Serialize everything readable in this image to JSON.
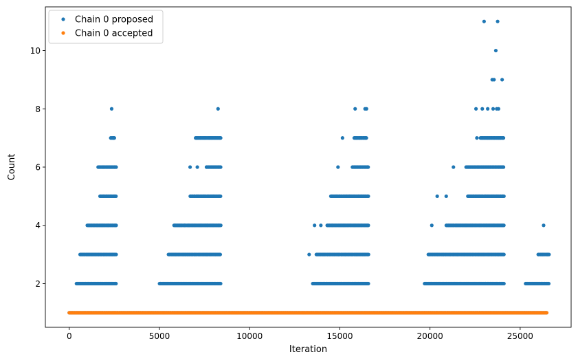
{
  "chart_data": {
    "type": "scatter",
    "title": "",
    "xlabel": "Iteration",
    "ylabel": "Count",
    "xlim": [
      -1325,
      27825
    ],
    "ylim": [
      0.5,
      11.5
    ],
    "xticks": [
      0,
      5000,
      10000,
      15000,
      20000,
      25000
    ],
    "xtick_labels": [
      "0",
      "5000",
      "10000",
      "15000",
      "20000",
      "25000"
    ],
    "yticks": [
      2,
      4,
      6,
      8,
      10
    ],
    "ytick_labels": [
      "2",
      "4",
      "6",
      "8",
      "10"
    ],
    "grid": false,
    "legend": {
      "placement": "top-left"
    },
    "series": [
      {
        "name": "Chain 0 proposed",
        "color": "#1f77b4",
        "marker": "circle",
        "baseline": {
          "y": 1,
          "x_start": 0,
          "x_end": 26500
        },
        "segments": [
          {
            "y": 2,
            "x_start": 400,
            "x_end": 2600
          },
          {
            "y": 3,
            "x_start": 600,
            "x_end": 2600
          },
          {
            "y": 4,
            "x_start": 1000,
            "x_end": 2600
          },
          {
            "y": 5,
            "x_start": 1700,
            "x_end": 2600
          },
          {
            "y": 6,
            "x_start": 1600,
            "x_end": 2600
          },
          {
            "y": 7,
            "x_start": 2300,
            "x_end": 2500
          },
          {
            "y": 2,
            "x_start": 5000,
            "x_end": 8400
          },
          {
            "y": 3,
            "x_start": 5500,
            "x_end": 8400
          },
          {
            "y": 4,
            "x_start": 5800,
            "x_end": 8400
          },
          {
            "y": 5,
            "x_start": 6700,
            "x_end": 8400
          },
          {
            "y": 6,
            "x_start": 7600,
            "x_end": 8400
          },
          {
            "y": 7,
            "x_start": 7000,
            "x_end": 8400
          },
          {
            "y": 2,
            "x_start": 13500,
            "x_end": 16600
          },
          {
            "y": 3,
            "x_start": 13700,
            "x_end": 16600
          },
          {
            "y": 4,
            "x_start": 14300,
            "x_end": 16600
          },
          {
            "y": 5,
            "x_start": 14500,
            "x_end": 16600
          },
          {
            "y": 6,
            "x_start": 15700,
            "x_end": 16600
          },
          {
            "y": 7,
            "x_start": 15800,
            "x_end": 16500
          },
          {
            "y": 2,
            "x_start": 19700,
            "x_end": 24100
          },
          {
            "y": 3,
            "x_start": 19900,
            "x_end": 24100
          },
          {
            "y": 4,
            "x_start": 20900,
            "x_end": 24100
          },
          {
            "y": 5,
            "x_start": 22100,
            "x_end": 24100
          },
          {
            "y": 6,
            "x_start": 22000,
            "x_end": 24100
          },
          {
            "y": 7,
            "x_start": 22800,
            "x_end": 24100
          },
          {
            "y": 2,
            "x_start": 25300,
            "x_end": 26600
          },
          {
            "y": 3,
            "x_start": 26000,
            "x_end": 26600
          }
        ],
        "points": [
          {
            "x": 2350,
            "y": 8
          },
          {
            "x": 2450,
            "y": 7
          },
          {
            "x": 8250,
            "y": 8
          },
          {
            "x": 6700,
            "y": 6
          },
          {
            "x": 7100,
            "y": 6
          },
          {
            "x": 6400,
            "y": 4
          },
          {
            "x": 13300,
            "y": 3
          },
          {
            "x": 13600,
            "y": 4
          },
          {
            "x": 13950,
            "y": 4
          },
          {
            "x": 14900,
            "y": 6
          },
          {
            "x": 15150,
            "y": 7
          },
          {
            "x": 15850,
            "y": 8
          },
          {
            "x": 16400,
            "y": 8
          },
          {
            "x": 16480,
            "y": 8
          },
          {
            "x": 20100,
            "y": 4
          },
          {
            "x": 20400,
            "y": 5
          },
          {
            "x": 20900,
            "y": 5
          },
          {
            "x": 21300,
            "y": 6
          },
          {
            "x": 22600,
            "y": 7
          },
          {
            "x": 22550,
            "y": 8
          },
          {
            "x": 22900,
            "y": 8
          },
          {
            "x": 23200,
            "y": 8
          },
          {
            "x": 23500,
            "y": 8
          },
          {
            "x": 23700,
            "y": 8
          },
          {
            "x": 23800,
            "y": 8
          },
          {
            "x": 23450,
            "y": 9
          },
          {
            "x": 23550,
            "y": 9
          },
          {
            "x": 24000,
            "y": 9
          },
          {
            "x": 23650,
            "y": 10
          },
          {
            "x": 23000,
            "y": 11
          },
          {
            "x": 23750,
            "y": 11
          },
          {
            "x": 26300,
            "y": 4
          }
        ]
      },
      {
        "name": "Chain 0 accepted",
        "color": "#ff7f0e",
        "marker": "circle",
        "segments": [
          {
            "y": 1,
            "x_start": 0,
            "x_end": 26500
          }
        ]
      }
    ]
  }
}
